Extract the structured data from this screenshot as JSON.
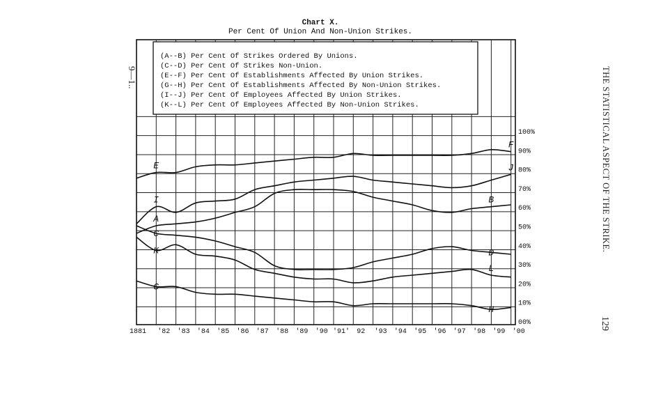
{
  "page": {
    "running_head": "THE STATISTICAL ASPECT OF THE STRIKE.",
    "page_number": "129",
    "sheet_mark": "9—1.."
  },
  "chart_data": {
    "type": "line",
    "title": "Chart X.",
    "subtitle": "Per Cent Of Union And Non-Union Strikes.",
    "xlabel": "",
    "ylabel": "",
    "x_tick_labels": [
      "1881",
      "'82",
      "'83",
      "'84",
      "'85",
      "'86",
      "'87",
      "'88",
      "'89",
      "'90",
      "'91'",
      "92",
      "'93",
      "'94",
      "'95",
      "'96",
      "'97",
      "'98",
      "'99",
      "'00"
    ],
    "y_tick_labels": [
      "00%",
      "10%",
      "20%",
      "30%",
      "40%",
      "50%",
      "60%",
      "70%",
      "80%",
      "90%",
      "100%"
    ],
    "ylim": [
      0,
      100
    ],
    "grid": true,
    "legend": {
      "placement": "top-left",
      "entries": [
        "(A--B) Per Cent Of Strikes Ordered By Unions.",
        "(C--D) Per Cent Of Strikes Non-Union.",
        "(E--F) Per Cent Of Establishments Affected By Union Strikes.",
        "(G--H) Per Cent Of Establishments Affected By Non-Union Strikes.",
        "(I--J) Per Cent Of Employees Affected By Union Strikes.",
        "(K--L) Per Cent Of Employees Affected By Non-Union Strikes."
      ]
    },
    "x": [
      1881,
      1882,
      1883,
      1884,
      1885,
      1886,
      1887,
      1888,
      1889,
      1890,
      1891,
      1892,
      1893,
      1894,
      1895,
      1896,
      1897,
      1898,
      1899,
      1900
    ],
    "series": [
      {
        "name": "A--B",
        "start_label": "A",
        "end_label": "B",
        "values": [
          48,
          52,
          53,
          54,
          56,
          59,
          62,
          69,
          71,
          71,
          71,
          70,
          67,
          65,
          63,
          60,
          59,
          61,
          62,
          63
        ]
      },
      {
        "name": "C--D",
        "start_label": "C",
        "end_label": "D",
        "values": [
          52,
          48,
          47,
          46,
          44,
          41,
          38,
          31,
          29,
          29,
          29,
          30,
          33,
          35,
          37,
          40,
          41,
          39,
          38,
          37
        ]
      },
      {
        "name": "E--F",
        "start_label": "E",
        "end_label": "F",
        "values": [
          77,
          80,
          80,
          83,
          84,
          84,
          85,
          86,
          87,
          88,
          88,
          90,
          89,
          89,
          89,
          89,
          89,
          90,
          92,
          91
        ]
      },
      {
        "name": "G--H",
        "start_label": "G",
        "end_label": "H",
        "values": [
          23,
          20,
          20,
          17,
          16,
          16,
          15,
          14,
          13,
          12,
          12,
          10,
          11,
          11,
          11,
          11,
          11,
          10,
          8,
          9
        ]
      },
      {
        "name": "I--J",
        "start_label": "I",
        "end_label": "J",
        "values": [
          53,
          62,
          59,
          64,
          65,
          66,
          71,
          73,
          75,
          76,
          77,
          78,
          76,
          75,
          74,
          73,
          72,
          73,
          76,
          79
        ]
      },
      {
        "name": "K--L",
        "start_label": "K",
        "end_label": "L",
        "values": [
          46,
          39,
          42,
          37,
          36,
          34,
          29,
          27,
          25,
          24,
          24,
          22,
          23,
          25,
          26,
          27,
          28,
          29,
          26,
          25
        ]
      }
    ],
    "curve_labels": [
      {
        "text": "E",
        "series": "E--F",
        "index": 1,
        "offset": "above"
      },
      {
        "text": "F",
        "series": "E--F",
        "index": 19,
        "offset": "above"
      },
      {
        "text": "J",
        "series": "I--J",
        "index": 19,
        "offset": "above"
      },
      {
        "text": "I",
        "series": "I--J",
        "index": 1,
        "offset": "above"
      },
      {
        "text": "B",
        "series": "A--B",
        "index": 18,
        "offset": "above"
      },
      {
        "text": "A",
        "series": "A--B",
        "index": 1,
        "offset": "above"
      },
      {
        "text": "C",
        "series": "C--D",
        "index": 1,
        "offset": "on"
      },
      {
        "text": "K",
        "series": "K--L",
        "index": 1,
        "offset": "on"
      },
      {
        "text": "D",
        "series": "C--D",
        "index": 18,
        "offset": "on"
      },
      {
        "text": "L",
        "series": "K--L",
        "index": 18,
        "offset": "above"
      },
      {
        "text": "G",
        "series": "G--H",
        "index": 1,
        "offset": "on"
      },
      {
        "text": "H",
        "series": "G--H",
        "index": 18,
        "offset": "on"
      }
    ]
  }
}
